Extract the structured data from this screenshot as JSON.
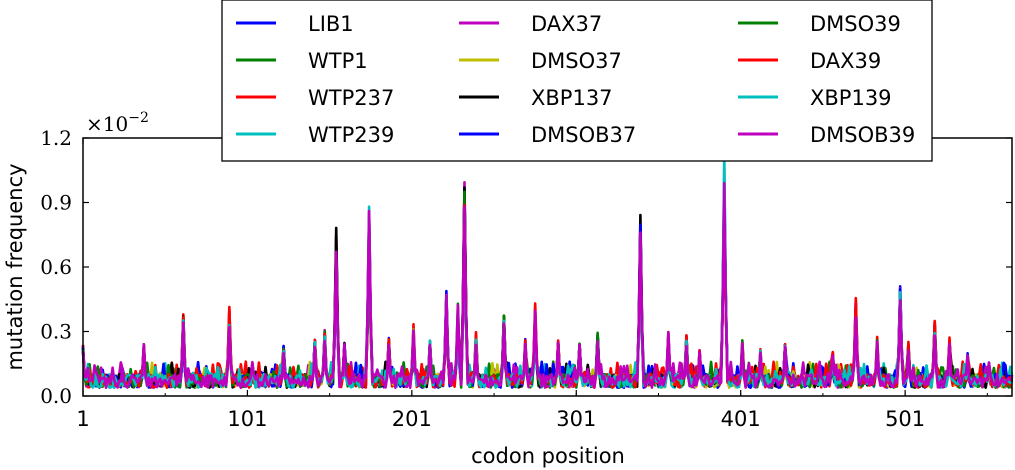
{
  "chart_data": {
    "type": "line",
    "xlabel": "codon position",
    "ylabel": "mutation frequency",
    "y_multiplier": "×10",
    "y_multiplier_exp": "−2",
    "xlim": [
      1,
      566
    ],
    "ylim": [
      0,
      0.012
    ],
    "x_ticks": [
      1,
      101,
      201,
      301,
      401,
      501
    ],
    "y_ticks": [
      0.0,
      0.003,
      0.006,
      0.009,
      0.012
    ],
    "y_tick_labels": [
      "0.0",
      "0.3",
      "0.6",
      "0.9",
      "1.2"
    ],
    "legend_position": "upper-center",
    "legend_columns": 3,
    "baseline": 0.0007,
    "series": [
      {
        "name": "LIB1",
        "color": "#0000ff",
        "seed": 11,
        "scale": 1.02,
        "overrides": [
          [
            233,
            0.0097
          ],
          [
            498,
            0.0051
          ],
          [
            340,
            0.0068
          ],
          [
            391,
            0.0096
          ],
          [
            175,
            0.0078
          ]
        ]
      },
      {
        "name": "WTP1",
        "color": "#008000",
        "seed": 23,
        "scale": 0.98,
        "overrides": [
          [
            498,
            0.0041
          ],
          [
            391,
            0.0095
          ]
        ]
      },
      {
        "name": "WTP237",
        "color": "#ff0000",
        "seed": 37,
        "scale": 1.05,
        "overrides": [
          [
            175,
            0.007
          ],
          [
            457,
            0.002
          ],
          [
            391,
            0.0094
          ]
        ]
      },
      {
        "name": "WTP239",
        "color": "#00bfbf",
        "seed": 41,
        "scale": 0.95,
        "overrides": [
          [
            391,
            0.0108
          ],
          [
            340,
            0.0079
          ],
          [
            233,
            0.009
          ]
        ]
      },
      {
        "name": "DAX37",
        "color": "#bf00bf",
        "seed": 53,
        "scale": 1.0,
        "overrides": [
          [
            391,
            0.0098
          ],
          [
            175,
            0.0085
          ]
        ]
      },
      {
        "name": "DMSO37",
        "color": "#bfbf00",
        "seed": 61,
        "scale": 0.97,
        "overrides": [
          [
            391,
            0.0094
          ]
        ]
      },
      {
        "name": "XBP137",
        "color": "#000000",
        "seed": 71,
        "scale": 1.03,
        "overrides": [
          [
            175,
            0.0082
          ],
          [
            391,
            0.0093
          ]
        ]
      },
      {
        "name": "DMSOB37",
        "color": "#0000ff",
        "seed": 83,
        "scale": 0.99,
        "overrides": [
          [
            391,
            0.0094
          ]
        ]
      },
      {
        "name": "DMSO39",
        "color": "#008000",
        "seed": 97,
        "scale": 1.01,
        "overrides": [
          [
            391,
            0.0095
          ]
        ]
      },
      {
        "name": "DAX39",
        "color": "#ff0000",
        "seed": 101,
        "scale": 1.04,
        "overrides": [
          [
            391,
            0.0094
          ]
        ]
      },
      {
        "name": "XBP139",
        "color": "#00bfbf",
        "seed": 113,
        "scale": 0.96,
        "overrides": [
          [
            391,
            0.011
          ]
        ]
      },
      {
        "name": "DMSOB39",
        "color": "#bf00bf",
        "seed": 127,
        "scale": 1.0,
        "overrides": [
          [
            391,
            0.0099
          ],
          [
            175,
            0.0086
          ],
          [
            233,
            0.0088
          ]
        ]
      }
    ],
    "peaks": [
      [
        1,
        0.0022
      ],
      [
        38,
        0.0022
      ],
      [
        62,
        0.0033
      ],
      [
        90,
        0.0036
      ],
      [
        104,
        0.0013
      ],
      [
        123,
        0.0022
      ],
      [
        142,
        0.0024
      ],
      [
        148,
        0.0028
      ],
      [
        155,
        0.0068
      ],
      [
        160,
        0.0022
      ],
      [
        175,
        0.0083
      ],
      [
        187,
        0.0024
      ],
      [
        202,
        0.0029
      ],
      [
        212,
        0.0024
      ],
      [
        222,
        0.0044
      ],
      [
        229,
        0.0038
      ],
      [
        233,
        0.0092
      ],
      [
        240,
        0.0026
      ],
      [
        257,
        0.0034
      ],
      [
        270,
        0.0024
      ],
      [
        276,
        0.0037
      ],
      [
        290,
        0.0024
      ],
      [
        303,
        0.0022
      ],
      [
        314,
        0.0026
      ],
      [
        340,
        0.0075
      ],
      [
        357,
        0.0028
      ],
      [
        368,
        0.0025
      ],
      [
        376,
        0.002
      ],
      [
        391,
        0.0095
      ],
      [
        402,
        0.0024
      ],
      [
        413,
        0.002
      ],
      [
        428,
        0.0022
      ],
      [
        457,
        0.0018
      ],
      [
        471,
        0.004
      ],
      [
        484,
        0.0024
      ],
      [
        498,
        0.0046
      ],
      [
        503,
        0.0022
      ],
      [
        519,
        0.0031
      ],
      [
        528,
        0.0024
      ],
      [
        539,
        0.0018
      ],
      [
        552,
        0.0014
      ]
    ]
  }
}
